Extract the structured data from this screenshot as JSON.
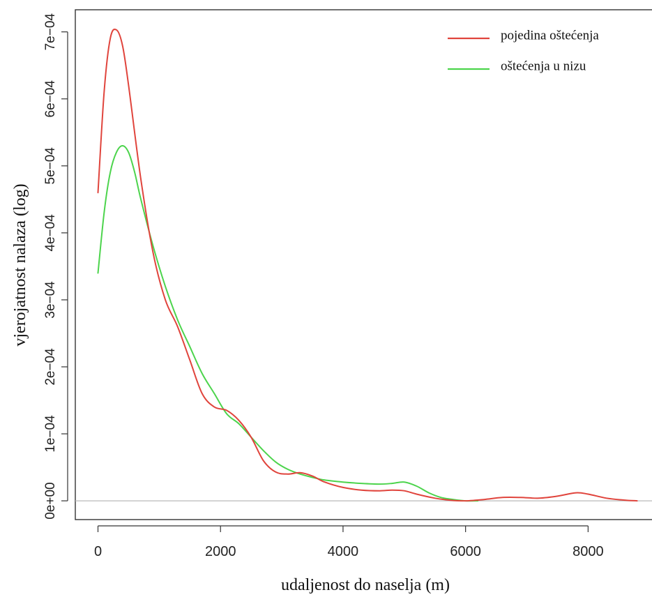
{
  "chart_data": {
    "type": "line",
    "xlabel": "udaljenost do naselja (m)",
    "ylabel": "vjerojatnost nalaza (log)",
    "xlim": [
      -370,
      9100
    ],
    "ylim": [
      -2.8e-05,
      0.000733
    ],
    "x_ticks": [
      0,
      2000,
      4000,
      6000,
      8000
    ],
    "x_tick_labels": [
      "0",
      "2000",
      "4000",
      "6000",
      "8000"
    ],
    "y_ticks": [
      0,
      0.0001,
      0.0002,
      0.0003,
      0.0004,
      0.0005,
      0.0006,
      0.0007
    ],
    "y_tick_labels": [
      "0e+00",
      "1e−04",
      "2e−04",
      "3e−04",
      "4e−04",
      "5e−04",
      "6e−04",
      "7e−04"
    ],
    "baseline": 0,
    "baseline_color": "#b8b8b8",
    "grid": false,
    "legend_position": "top-right",
    "series": [
      {
        "name": "pojedina oštećenja",
        "color": "#e0443c",
        "x": [
          0,
          100,
          200,
          300,
          400,
          500,
          700,
          900,
          1100,
          1300,
          1500,
          1700,
          1900,
          2100,
          2300,
          2500,
          2700,
          2900,
          3100,
          3300,
          3500,
          3700,
          4000,
          4300,
          4600,
          4800,
          5000,
          5200,
          5500,
          5800,
          6000,
          6300,
          6600,
          6900,
          7200,
          7500,
          7800,
          8000,
          8300,
          8600,
          8800
        ],
        "y": [
          0.00046,
          0.00061,
          0.00069,
          0.000703,
          0.00068,
          0.00062,
          0.00048,
          0.00037,
          0.0003,
          0.00026,
          0.00021,
          0.00016,
          0.00014,
          0.000135,
          0.00012,
          9.5e-05,
          6e-05,
          4.3e-05,
          4e-05,
          4.2e-05,
          3.7e-05,
          2.8e-05,
          2e-05,
          1.6e-05,
          1.5e-05,
          1.6e-05,
          1.5e-05,
          1e-05,
          4e-06,
          5e-07,
          0.0,
          2e-06,
          5e-06,
          5e-06,
          4e-06,
          7e-06,
          1.2e-05,
          1e-05,
          4e-06,
          1e-06,
          0.0
        ]
      },
      {
        "name": "oštećenja u nizu",
        "color": "#4cd44c",
        "x": [
          0,
          100,
          200,
          300,
          400,
          500,
          600,
          700,
          900,
          1100,
          1300,
          1500,
          1700,
          1900,
          2100,
          2300,
          2500,
          2700,
          2900,
          3100,
          3300,
          3500,
          3700,
          4000,
          4300,
          4600,
          4800,
          5000,
          5200,
          5400,
          5600,
          5800,
          6000,
          6200
        ],
        "y": [
          0.00034,
          0.00043,
          0.00049,
          0.00052,
          0.00053,
          0.00052,
          0.00049,
          0.00045,
          0.00038,
          0.00032,
          0.00027,
          0.00023,
          0.00019,
          0.00016,
          0.00013,
          0.000115,
          9.5e-05,
          7.5e-05,
          5.8e-05,
          4.7e-05,
          4e-05,
          3.5e-05,
          3.1e-05,
          2.8e-05,
          2.6e-05,
          2.5e-05,
          2.6e-05,
          2.8e-05,
          2.2e-05,
          1.2e-05,
          5e-06,
          2e-06,
          0.0,
          0.0
        ]
      }
    ]
  }
}
